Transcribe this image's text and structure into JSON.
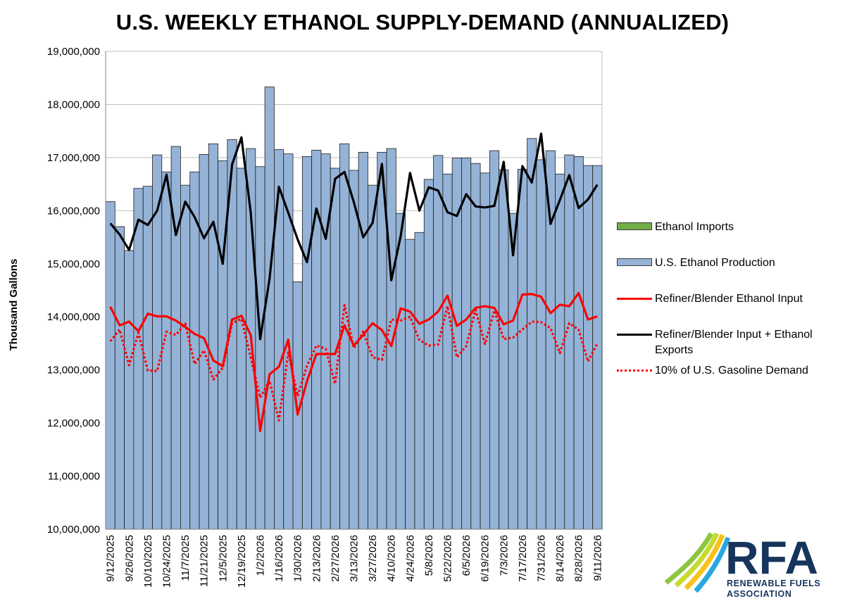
{
  "chart_data": {
    "type": "bar",
    "title": "U.S. WEEKLY ETHANOL SUPPLY-DEMAND (ANNUALIZED)",
    "ylabel": "Thousand Gallons",
    "xlabel": "",
    "ylim": [
      10000000,
      19000000
    ],
    "yticks": [
      "10,000,000",
      "11,000,000",
      "12,000,000",
      "13,000,000",
      "14,000,000",
      "15,000,000",
      "16,000,000",
      "17,000,000",
      "18,000,000",
      "19,000,000"
    ],
    "ytick_values": [
      10000000,
      11000000,
      12000000,
      13000000,
      14000000,
      15000000,
      16000000,
      17000000,
      18000000,
      19000000
    ],
    "grid": true,
    "legend_position": "right",
    "xtick_labels": [
      "9/12/2025",
      "9/26/2025",
      "10/10/2025",
      "10/24/2025",
      "11/7/2025",
      "11/21/2025",
      "12/5/2025",
      "12/19/2025",
      "1/2/2026",
      "1/16/2026",
      "1/30/2026",
      "2/13/2026",
      "2/27/2026",
      "3/13/2026",
      "3/27/2026",
      "4/10/2026",
      "4/24/2026",
      "5/8/2026",
      "5/22/2026",
      "6/5/2026",
      "6/19/2026",
      "7/3/2026",
      "7/17/2026",
      "7/31/2026",
      "8/14/2026",
      "8/28/2026",
      "9/11/2026"
    ],
    "categories": [
      "9/12/2025",
      "9/19/2025",
      "9/26/2025",
      "10/3/2025",
      "10/10/2025",
      "10/17/2025",
      "10/24/2025",
      "10/31/2025",
      "11/7/2025",
      "11/14/2025",
      "11/21/2025",
      "11/28/2025",
      "12/5/2025",
      "12/12/2025",
      "12/19/2025",
      "12/26/2025",
      "1/2/2026",
      "1/9/2026",
      "1/16/2026",
      "1/23/2026",
      "1/30/2026",
      "2/6/2026",
      "2/13/2026",
      "2/20/2026",
      "2/27/2026",
      "3/6/2026",
      "3/13/2026",
      "3/20/2026",
      "3/27/2026",
      "4/3/2026",
      "4/10/2026",
      "4/17/2026",
      "4/24/2026",
      "5/1/2026",
      "5/8/2026",
      "5/15/2026",
      "5/22/2026",
      "5/29/2026",
      "6/5/2026",
      "6/12/2026",
      "6/19/2026",
      "6/26/2026",
      "7/3/2026",
      "7/10/2026",
      "7/17/2026",
      "7/24/2026",
      "7/31/2026",
      "8/7/2026",
      "8/14/2026",
      "8/21/2026",
      "8/28/2026",
      "9/4/2026",
      "9/11/2026"
    ],
    "series": [
      {
        "name": "Ethanol Imports",
        "type": "bar",
        "color": "#70ad47",
        "values": [
          0,
          0,
          0,
          0,
          0,
          0,
          0,
          0,
          0,
          0,
          0,
          0,
          0,
          0,
          0,
          0,
          0,
          0,
          0,
          0,
          0,
          0,
          0,
          0,
          0,
          0,
          0,
          0,
          0,
          0,
          0,
          0,
          0,
          0,
          0,
          0,
          0,
          0,
          0,
          0,
          0,
          0,
          0,
          0,
          0,
          0,
          0,
          0,
          0,
          0,
          0,
          0,
          0
        ]
      },
      {
        "name": "U.S. Ethanol Production",
        "type": "bar",
        "color": "#95b3d7",
        "values": [
          16170000,
          15700000,
          15250000,
          16420000,
          16460000,
          17050000,
          16730000,
          17210000,
          16480000,
          16730000,
          17060000,
          17260000,
          16940000,
          17340000,
          16800000,
          17170000,
          16830000,
          18330000,
          17150000,
          17070000,
          14660000,
          17020000,
          17140000,
          17070000,
          16800000,
          17260000,
          16760000,
          17100000,
          16480000,
          17100000,
          17170000,
          15950000,
          15460000,
          15590000,
          16590000,
          17040000,
          16690000,
          16990000,
          16990000,
          16890000,
          16710000,
          17130000,
          16770000,
          15950000,
          16780000,
          17360000,
          16960000,
          17130000,
          16690000,
          17050000,
          17020000,
          16850000,
          16850000
        ]
      },
      {
        "name": "Refiner/Blender Ethanol Input",
        "type": "line",
        "color": "#ff0000",
        "values": [
          14190000,
          13840000,
          13910000,
          13730000,
          14060000,
          14010000,
          14010000,
          13930000,
          13810000,
          13680000,
          13600000,
          13180000,
          13070000,
          13950000,
          14020000,
          13650000,
          11850000,
          12920000,
          13060000,
          13570000,
          12160000,
          12790000,
          13300000,
          13300000,
          13300000,
          13840000,
          13460000,
          13660000,
          13880000,
          13750000,
          13450000,
          14160000,
          14100000,
          13870000,
          13950000,
          14100000,
          14400000,
          13830000,
          13950000,
          14170000,
          14200000,
          14170000,
          13860000,
          13930000,
          14420000,
          14430000,
          14380000,
          14070000,
          14230000,
          14200000,
          14450000,
          13950000,
          14010000
        ]
      },
      {
        "name": "Refiner/Blender Input + Ethanol Exports",
        "type": "line",
        "color": "#000000",
        "values": [
          15760000,
          15550000,
          15260000,
          15830000,
          15730000,
          16000000,
          16680000,
          15540000,
          16170000,
          15880000,
          15480000,
          15790000,
          15000000,
          16870000,
          17380000,
          15950000,
          13580000,
          14720000,
          16450000,
          15960000,
          15460000,
          15030000,
          16040000,
          15470000,
          16600000,
          16730000,
          16160000,
          15500000,
          15770000,
          16880000,
          14690000,
          15520000,
          16710000,
          16000000,
          16440000,
          16380000,
          15970000,
          15900000,
          16310000,
          16080000,
          16060000,
          16090000,
          16920000,
          15160000,
          16840000,
          16530000,
          17450000,
          15750000,
          16200000,
          16670000,
          16050000,
          16210000,
          16490000
        ]
      },
      {
        "name": "10% of U.S. Gasoline Demand",
        "type": "line",
        "dashed": true,
        "color": "#ff0000",
        "values": [
          13540000,
          13760000,
          13090000,
          13700000,
          12990000,
          12980000,
          13720000,
          13660000,
          13870000,
          13110000,
          13370000,
          12820000,
          13040000,
          13880000,
          13960000,
          13230000,
          12480000,
          12800000,
          12050000,
          13330000,
          12510000,
          13080000,
          13460000,
          13400000,
          12740000,
          14220000,
          13410000,
          13720000,
          13240000,
          13190000,
          13950000,
          13930000,
          14000000,
          13560000,
          13460000,
          13480000,
          14200000,
          13240000,
          13450000,
          14130000,
          13490000,
          14120000,
          13580000,
          13610000,
          13760000,
          13910000,
          13900000,
          13790000,
          13320000,
          13880000,
          13760000,
          13160000,
          13500000
        ]
      }
    ]
  },
  "colors": {
    "bar_fill": "#95b3d7",
    "bar_stroke": "#1f1f1f",
    "imports": "#70ad47",
    "red": "#ff0000",
    "black": "#000000"
  },
  "logo": {
    "letters": "RFA",
    "line1": "RENEWABLE FUELS",
    "line2": "ASSOCIATION"
  }
}
